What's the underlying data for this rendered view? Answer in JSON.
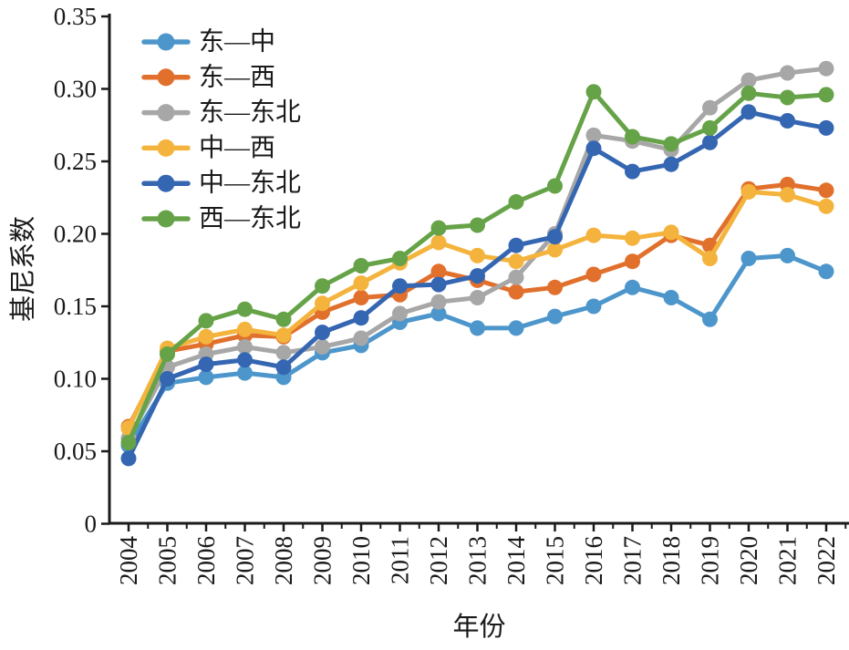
{
  "figure": {
    "kind": "line-chart-figure",
    "background": "#ffffff",
    "axis_color": "#1a1a1a"
  },
  "chart_data": {
    "type": "line",
    "title": "",
    "xlabel": "年份",
    "ylabel": "基尼系数",
    "x": [
      2004,
      2005,
      2006,
      2007,
      2008,
      2009,
      2010,
      2011,
      2012,
      2013,
      2014,
      2015,
      2016,
      2017,
      2018,
      2019,
      2020,
      2021,
      2022
    ],
    "x_tick_labels": [
      "2004",
      "2005",
      "2006",
      "2007",
      "2008",
      "2009",
      "2010",
      "2011",
      "2012",
      "2013",
      "2014",
      "2015",
      "2016",
      "2017",
      "2018",
      "2019",
      "2020",
      "2021",
      "2022"
    ],
    "ylim": [
      0,
      0.35
    ],
    "y_ticks": [
      0,
      0.05,
      0.1,
      0.15,
      0.2,
      0.25,
      0.3,
      0.35
    ],
    "y_tick_labels": [
      "0",
      "0.05",
      "0.10",
      "0.15",
      "0.20",
      "0.25",
      "0.30",
      "0.35"
    ],
    "grid": false,
    "legend_position": "inside-top-left",
    "marker": "circle",
    "series": [
      {
        "name": "东—中",
        "color": "#4D96CB",
        "values": [
          0.054,
          0.097,
          0.101,
          0.104,
          0.101,
          0.118,
          0.123,
          0.139,
          0.145,
          0.135,
          0.135,
          0.143,
          0.15,
          0.163,
          0.156,
          0.141,
          0.183,
          0.185,
          0.174
        ]
      },
      {
        "name": "东—西",
        "color": "#E1702C",
        "values": [
          0.067,
          0.119,
          0.124,
          0.13,
          0.129,
          0.146,
          0.156,
          0.158,
          0.174,
          0.168,
          0.16,
          0.163,
          0.172,
          0.181,
          0.199,
          0.192,
          0.231,
          0.234,
          0.23
        ]
      },
      {
        "name": "东—东北",
        "color": "#A7A7A7",
        "values": [
          0.059,
          0.108,
          0.117,
          0.122,
          0.118,
          0.122,
          0.128,
          0.145,
          0.153,
          0.156,
          0.17,
          0.2,
          0.268,
          0.264,
          0.258,
          0.287,
          0.306,
          0.311,
          0.314
        ]
      },
      {
        "name": "中—西",
        "color": "#F4B33C",
        "values": [
          0.066,
          0.121,
          0.129,
          0.134,
          0.13,
          0.152,
          0.166,
          0.18,
          0.194,
          0.185,
          0.181,
          0.189,
          0.199,
          0.197,
          0.201,
          0.183,
          0.229,
          0.227,
          0.219
        ]
      },
      {
        "name": "中—东北",
        "color": "#3566B1",
        "values": [
          0.045,
          0.1,
          0.11,
          0.113,
          0.108,
          0.132,
          0.142,
          0.164,
          0.165,
          0.171,
          0.192,
          0.198,
          0.259,
          0.243,
          0.248,
          0.263,
          0.284,
          0.278,
          0.273
        ]
      },
      {
        "name": "西—东北",
        "color": "#66A348",
        "values": [
          0.056,
          0.117,
          0.14,
          0.148,
          0.141,
          0.164,
          0.178,
          0.183,
          0.204,
          0.206,
          0.222,
          0.233,
          0.298,
          0.267,
          0.262,
          0.273,
          0.297,
          0.294,
          0.296
        ]
      }
    ]
  }
}
